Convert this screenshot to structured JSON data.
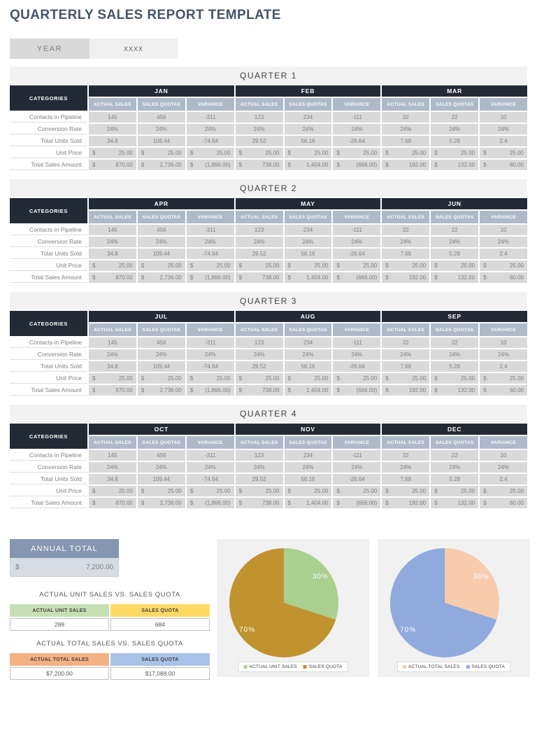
{
  "title": "QUARTERLY SALES REPORT TEMPLATE",
  "year": {
    "label": "YEAR",
    "value": "XXXX"
  },
  "table": {
    "categories_header": "CATEGORIES",
    "sub_headers": [
      "ACTUAL SALES",
      "SALES QUOTAS",
      "VARIANCE"
    ],
    "quarters": [
      {
        "title": "QUARTER 1",
        "months": [
          "JAN",
          "FEB",
          "MAR"
        ]
      },
      {
        "title": "QUARTER 2",
        "months": [
          "APR",
          "MAY",
          "JUN"
        ]
      },
      {
        "title": "QUARTER 3",
        "months": [
          "JUL",
          "AUG",
          "SEP"
        ]
      },
      {
        "title": "QUARTER 4",
        "months": [
          "OCT",
          "NOV",
          "DEC"
        ]
      }
    ],
    "rows": [
      {
        "label": "Contacts in Pipeline",
        "currency": false,
        "values": [
          "145",
          "456",
          "-311",
          "123",
          "234",
          "-111",
          "32",
          "22",
          "10"
        ]
      },
      {
        "label": "Conversion Rate",
        "currency": false,
        "values": [
          "24%",
          "24%",
          "24%",
          "24%",
          "24%",
          "24%",
          "24%",
          "24%",
          "24%"
        ]
      },
      {
        "label": "Total Units Sold",
        "currency": false,
        "values": [
          "34.8",
          "109.44",
          "-74.64",
          "29.52",
          "56.16",
          "-26.64",
          "7.68",
          "5.28",
          "2.4"
        ]
      },
      {
        "label": "Unit Price",
        "currency": true,
        "values": [
          "25.00",
          "25.00",
          "25.00",
          "25.00",
          "25.00",
          "25.00",
          "25.00",
          "25.00",
          "25.00"
        ]
      },
      {
        "label": "Total Sales Amount",
        "currency": true,
        "values": [
          "870.00",
          "2,736.00",
          "(1,866.00)",
          "738.00",
          "1,404.00",
          "(666.00)",
          "192.00",
          "132.00",
          "60.00"
        ]
      }
    ]
  },
  "annual_total": {
    "label": "ANNUAL TOTAL",
    "currency_symbol": "$",
    "value": "7,200.00"
  },
  "unit_table": {
    "title": "ACTUAL UNIT SALES VS. SALES QUOTA",
    "col1": "ACTUAL UNIT SALES",
    "col2": "SALES QUOTA",
    "val1": "288",
    "val2": "684"
  },
  "total_table": {
    "title": "ACTUAL TOTAL SALES VS. SALES QUOTA",
    "col1": "ACTUAL TOTAL SALES",
    "col2": "SALES QUOTA",
    "val1": "$7,200.00",
    "val2": "$17,088.00"
  },
  "chart_data": [
    {
      "type": "pie",
      "labels": [
        "ACTUAL UNIT SALES",
        "SALES QUOTA"
      ],
      "values": [
        30,
        70
      ],
      "display_labels": [
        "30%",
        "70%"
      ],
      "colors": [
        "#A9D08E",
        "#C0932F"
      ],
      "legend_position": "bottom"
    },
    {
      "type": "pie",
      "labels": [
        "ACTUAL TOTAL SALES",
        "SALES QUOTA"
      ],
      "values": [
        30,
        70
      ],
      "display_labels": [
        "30%",
        "70%"
      ],
      "colors": [
        "#F8CBAD",
        "#8FAADC"
      ],
      "legend_position": "bottom"
    }
  ],
  "colors": {
    "header_dark": "#222B35",
    "header_light_blue": "#AEB9CA",
    "cell_gray": "#D9D9D9",
    "annual_header": "#8496B0",
    "annual_value_bg": "#D6DCE4",
    "unit_col1": "#C6E0B4",
    "unit_col2": "#FFD966",
    "total_col1": "#F4B183",
    "total_col2": "#A9C2E8",
    "title_text": "#44546A"
  }
}
